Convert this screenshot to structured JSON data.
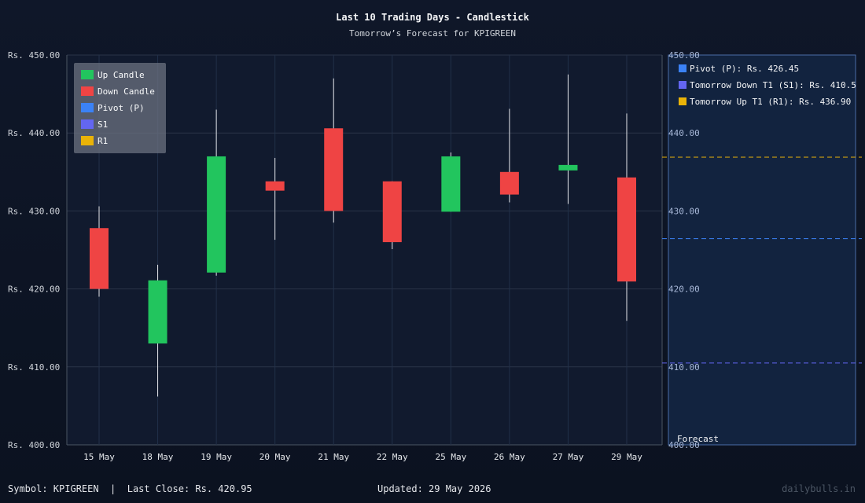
{
  "header": {
    "title": "Last 10 Trading Days - Candlestick",
    "subtitle": "Tomorrow’s Forecast for KPIGREEN"
  },
  "footer": {
    "left": "Symbol: KPIGREEN  |  Last Close: Rs. 420.95",
    "center": "Updated: 29 May 2026",
    "right": "dailybulls.in"
  },
  "forecast_panel": {
    "label": "Forecast",
    "entries": [
      {
        "text": "Pivot (P): Rs. 426.45",
        "color": "#3b82f6"
      },
      {
        "text": "Tomorrow Down T1 (S1): Rs. 410.5",
        "color": "#6366f1"
      },
      {
        "text": "Tomorrow Up T1 (R1): Rs. 436.90",
        "color": "#eab308"
      }
    ]
  },
  "colors": {
    "up": "#22c55e",
    "down": "#ef4444",
    "pivot": "#3b82f6",
    "s1": "#6366f1",
    "r1": "#eab308"
  },
  "chart_data": {
    "type": "candlestick",
    "title": "Last 10 Trading Days - Candlestick",
    "subtitle": "Tomorrow’s Forecast for KPIGREEN",
    "ylim": [
      400,
      450
    ],
    "y_ticks": [
      "Rs. 400.00",
      "Rs. 410.00",
      "Rs. 420.00",
      "Rs. 430.00",
      "Rs. 440.00",
      "Rs. 450.00"
    ],
    "y_ticks_right": [
      "400.00",
      "410.00",
      "420.00",
      "430.00",
      "440.00",
      "450.00"
    ],
    "y_tick_values": [
      400,
      410,
      420,
      430,
      440,
      450
    ],
    "grid": true,
    "legend": {
      "position": "top-left",
      "entries": [
        {
          "label": "Up Candle",
          "color": "#22c55e"
        },
        {
          "label": "Down Candle",
          "color": "#ef4444"
        },
        {
          "label": "Pivot (P)",
          "color": "#3b82f6"
        },
        {
          "label": "S1",
          "color": "#6366f1"
        },
        {
          "label": "R1",
          "color": "#eab308"
        }
      ]
    },
    "candles": [
      {
        "date": "15 May",
        "open": 427.8,
        "high": 430.6,
        "low": 419.0,
        "close": 420.0
      },
      {
        "date": "18 May",
        "open": 413.0,
        "high": 423.1,
        "low": 406.2,
        "close": 421.1
      },
      {
        "date": "19 May",
        "open": 422.1,
        "high": 443.0,
        "low": 421.7,
        "close": 437.0
      },
      {
        "date": "20 May",
        "open": 433.8,
        "high": 436.8,
        "low": 426.3,
        "close": 432.6
      },
      {
        "date": "21 May",
        "open": 440.6,
        "high": 447.0,
        "low": 428.5,
        "close": 430.0
      },
      {
        "date": "22 May",
        "open": 433.8,
        "high": 433.8,
        "low": 425.1,
        "close": 426.0
      },
      {
        "date": "25 May",
        "open": 429.9,
        "high": 437.5,
        "low": 429.9,
        "close": 437.0
      },
      {
        "date": "26 May",
        "open": 435.0,
        "high": 443.1,
        "low": 431.1,
        "close": 432.1
      },
      {
        "date": "27 May",
        "open": 435.2,
        "high": 447.5,
        "low": 430.9,
        "close": 435.9
      },
      {
        "date": "29 May",
        "open": 434.3,
        "high": 442.5,
        "low": 415.9,
        "close": 420.95
      }
    ],
    "forecast_levels": [
      {
        "name": "Pivot (P)",
        "value": 426.45,
        "color": "#3b82f6"
      },
      {
        "name": "S1",
        "value": 410.5,
        "color": "#6366f1"
      },
      {
        "name": "R1",
        "value": 436.9,
        "color": "#eab308"
      }
    ]
  }
}
